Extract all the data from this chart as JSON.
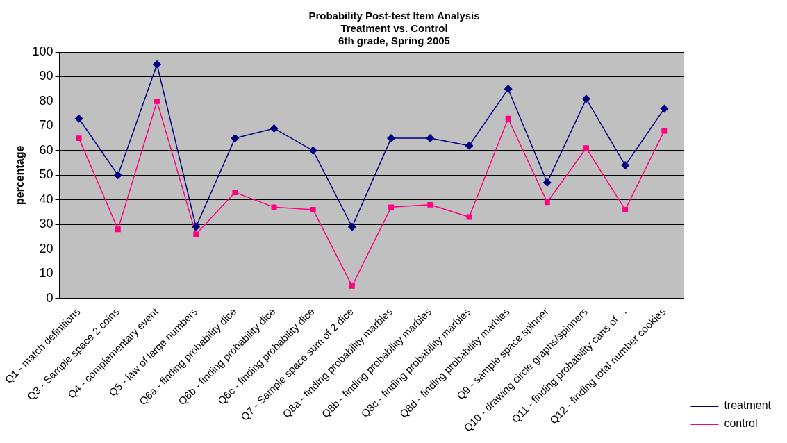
{
  "chart_data": {
    "type": "line",
    "title": [
      "Probability Post-test Item Analysis",
      "Treatment vs. Control",
      "6th grade, Spring 2005"
    ],
    "ylabel": "percentage",
    "categories": [
      "Q1 - match definitions",
      "Q3 - Sample space 2 coins",
      "Q4 - complementary event",
      "Q5 - law of large numbers",
      "Q6a - finding probability dice",
      "Q6b - finding probability dice",
      "Q6c - finding probability dice",
      "Q7 - Sample space sum of 2 dice",
      "Q8a - finding probability marbles",
      "Q8b - finding probability marbles",
      "Q8c - finding probability marbles",
      "Q8d - finding probability marbles",
      "Q9 - sample space spinner",
      "Q10 - drawing circle graphs/spinners",
      "Q11 - finding probability cans of ...",
      "Q12 - finding total number cookies"
    ],
    "series": [
      {
        "name": "treatment",
        "color": "#000080",
        "marker": "diamond",
        "values": [
          73,
          50,
          95,
          29,
          65,
          69,
          60,
          29,
          65,
          65,
          62,
          85,
          47,
          81,
          54,
          77
        ]
      },
      {
        "name": "control",
        "color": "#ff0080",
        "marker": "square",
        "values": [
          65,
          28,
          80,
          26,
          43,
          37,
          36,
          5,
          37,
          38,
          33,
          73,
          39,
          61,
          36,
          68
        ]
      }
    ],
    "ylim": [
      0,
      100
    ],
    "yticks": [
      0,
      10,
      20,
      30,
      40,
      50,
      60,
      70,
      80,
      90,
      100
    ],
    "grid": "y",
    "legend": "bottom right",
    "line_style": "solid"
  }
}
